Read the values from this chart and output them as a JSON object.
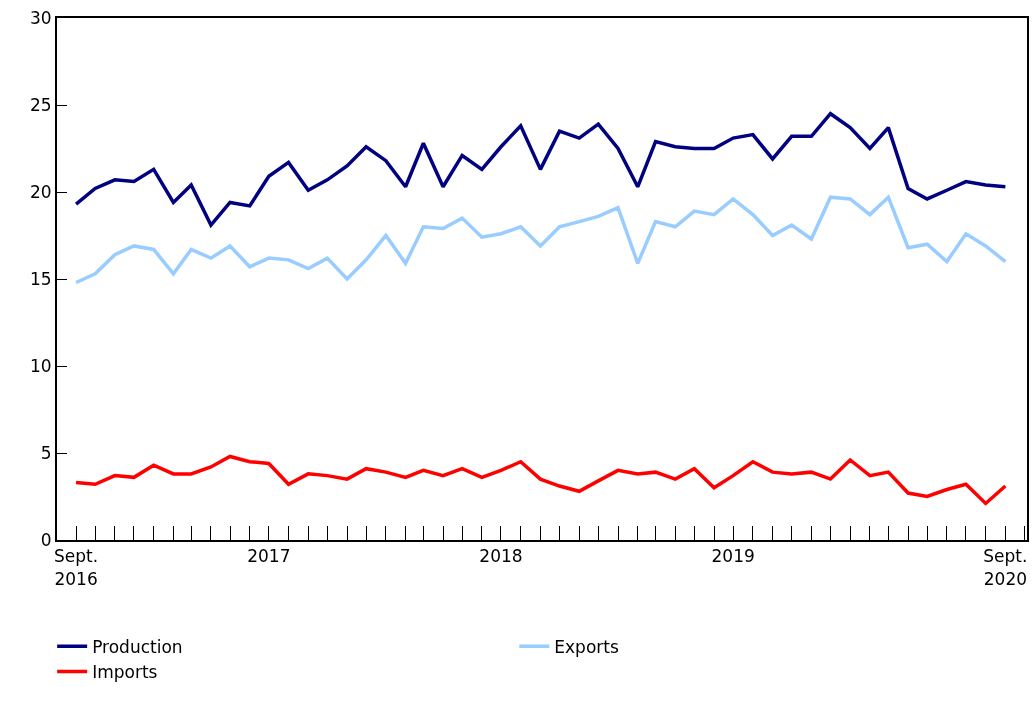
{
  "chart_data": {
    "type": "line",
    "x": [
      "2016-09",
      "2016-10",
      "2016-11",
      "2016-12",
      "2017-01",
      "2017-02",
      "2017-03",
      "2017-04",
      "2017-05",
      "2017-06",
      "2017-07",
      "2017-08",
      "2017-09",
      "2017-10",
      "2017-11",
      "2017-12",
      "2018-01",
      "2018-02",
      "2018-03",
      "2018-04",
      "2018-05",
      "2018-06",
      "2018-07",
      "2018-08",
      "2018-09",
      "2018-10",
      "2018-11",
      "2018-12",
      "2019-01",
      "2019-02",
      "2019-03",
      "2019-04",
      "2019-05",
      "2019-06",
      "2019-07",
      "2019-08",
      "2019-09",
      "2019-10",
      "2019-11",
      "2019-12",
      "2020-01",
      "2020-02",
      "2020-03",
      "2020-04",
      "2020-05",
      "2020-06",
      "2020-07",
      "2020-08",
      "2020-09"
    ],
    "series": [
      {
        "name": "Production",
        "color": "#000080",
        "values": [
          19.3,
          20.2,
          20.7,
          20.6,
          21.3,
          19.4,
          20.4,
          18.1,
          19.4,
          19.2,
          20.9,
          21.7,
          20.1,
          20.7,
          21.5,
          22.6,
          21.8,
          20.3,
          22.8,
          20.3,
          22.1,
          21.3,
          22.6,
          23.8,
          21.3,
          23.5,
          23.1,
          23.9,
          22.5,
          20.3,
          22.9,
          22.6,
          22.5,
          22.5,
          23.1,
          23.3,
          21.9,
          23.2,
          23.2,
          24.5,
          23.7,
          22.5,
          23.7,
          20.2,
          19.6,
          20.1,
          20.6,
          20.4,
          20.3
        ]
      },
      {
        "name": "Exports",
        "color": "#99ccff",
        "values": [
          14.8,
          15.3,
          16.4,
          16.9,
          16.7,
          15.3,
          16.7,
          16.2,
          16.9,
          15.7,
          16.2,
          16.1,
          15.6,
          16.2,
          15.0,
          16.1,
          17.5,
          15.9,
          18.0,
          17.9,
          18.5,
          17.4,
          17.6,
          18.0,
          16.9,
          18.0,
          18.3,
          18.6,
          19.1,
          15.9,
          18.3,
          18.0,
          18.9,
          18.7,
          19.6,
          18.7,
          17.5,
          18.1,
          17.3,
          19.7,
          19.6,
          18.7,
          19.7,
          16.8,
          17.0,
          16.0,
          17.6,
          16.9,
          16.0
        ]
      },
      {
        "name": "Imports",
        "color": "#ff0000",
        "values": [
          3.3,
          3.2,
          3.7,
          3.6,
          4.3,
          3.8,
          3.8,
          4.2,
          4.8,
          4.5,
          4.4,
          3.2,
          3.8,
          3.7,
          3.5,
          4.1,
          3.9,
          3.6,
          4.0,
          3.7,
          4.1,
          3.6,
          4.0,
          4.5,
          3.5,
          3.1,
          2.8,
          3.4,
          4.0,
          3.8,
          3.9,
          3.5,
          4.1,
          3.0,
          3.7,
          4.5,
          3.9,
          3.8,
          3.9,
          3.5,
          4.6,
          3.7,
          3.9,
          2.7,
          2.5,
          2.9,
          3.2,
          2.1,
          3.1
        ]
      }
    ],
    "xlim": [
      "2016-08-02",
      "2020-10-05"
    ],
    "xticks": [
      {
        "value": "2016-09",
        "label": "Sept.\n2016"
      },
      {
        "value": "2017-07",
        "label": "2017"
      },
      {
        "value": "2018-07",
        "label": "2018"
      },
      {
        "value": "2019-07",
        "label": "2019"
      },
      {
        "value": "2020-09",
        "label": "Sept.\n2020"
      }
    ],
    "ylim": [
      0,
      30
    ],
    "yticks": [
      0,
      5,
      10,
      15,
      20,
      25,
      30
    ],
    "grid": false,
    "legend": "bottom",
    "line_style": "solid",
    "marker": "none"
  }
}
